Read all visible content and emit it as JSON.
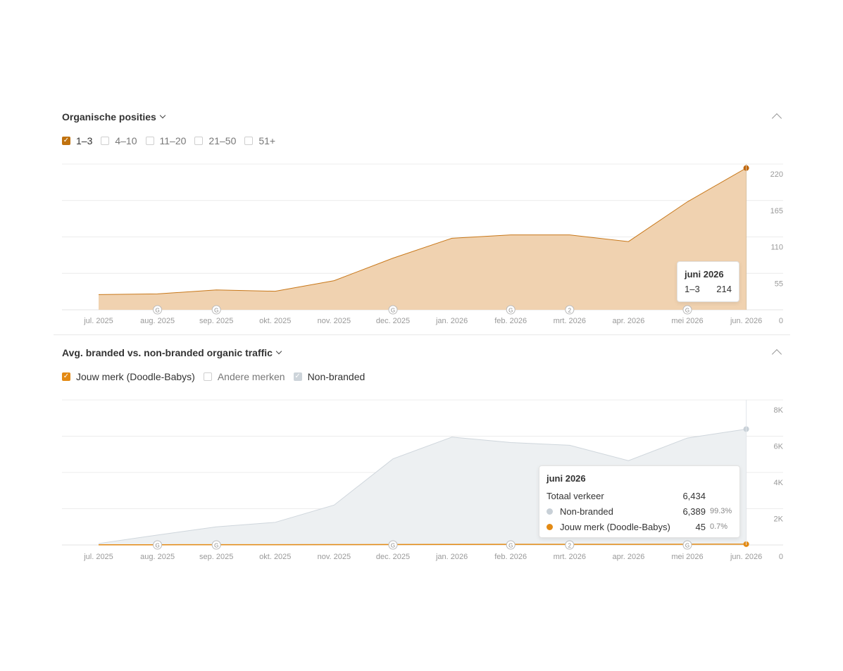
{
  "section1": {
    "title": "Organische posities",
    "filters": [
      {
        "label": "1–3",
        "checked": true
      },
      {
        "label": "4–10",
        "checked": false
      },
      {
        "label": "11–20",
        "checked": false
      },
      {
        "label": "21–50",
        "checked": false
      },
      {
        "label": "51+",
        "checked": false
      }
    ],
    "tooltip": {
      "title": "juni 2026",
      "label": "1–3",
      "value": "214"
    }
  },
  "section2": {
    "title": "Avg. branded vs. non-branded organic traffic",
    "filters": [
      {
        "label": "Jouw merk (Doodle-Babys)",
        "checked": true
      },
      {
        "label": "Andere merken",
        "checked": false
      },
      {
        "label": "Non-branded",
        "checked": true
      }
    ],
    "tooltip": {
      "title": "juni 2026",
      "total_label": "Totaal verkeer",
      "total_value": "6,434",
      "rows": [
        {
          "label": "Non-branded",
          "value": "6,389",
          "pct": "99.3%",
          "color": "#c8d0d7"
        },
        {
          "label": "Jouw merk (Doodle-Babys)",
          "value": "45",
          "pct": "0.7%",
          "color": "#e38a14"
        }
      ]
    }
  },
  "chart_data": [
    {
      "type": "area",
      "title": "Organische posities",
      "x": [
        "jul. 2025",
        "aug. 2025",
        "sep. 2025",
        "okt. 2025",
        "nov. 2025",
        "dec. 2025",
        "jan. 2026",
        "feb. 2026",
        "mrt. 2026",
        "apr. 2026",
        "mei 2026",
        "jun. 2026"
      ],
      "series": [
        {
          "name": "1–3",
          "color": "#e38a14",
          "values": [
            23,
            24,
            30,
            28,
            44,
            78,
            108,
            113,
            113,
            103,
            163,
            214
          ]
        }
      ],
      "yticks": [
        "0",
        "55",
        "110",
        "165",
        "220"
      ],
      "ylim": [
        0,
        220
      ],
      "annotations": [
        {
          "x": "aug. 2025",
          "label": "G"
        },
        {
          "x": "sep. 2025",
          "label": "G"
        },
        {
          "x": "dec. 2025",
          "label": "G"
        },
        {
          "x": "feb. 2026",
          "label": "G"
        },
        {
          "x": "mrt. 2026",
          "label": "2"
        },
        {
          "x": "mei 2026",
          "label": "G"
        }
      ],
      "grid": true
    },
    {
      "type": "area",
      "title": "Avg. branded vs. non-branded organic traffic",
      "x": [
        "jul. 2025",
        "aug. 2025",
        "sep. 2025",
        "okt. 2025",
        "nov. 2025",
        "dec. 2025",
        "jan. 2026",
        "feb. 2026",
        "mrt. 2026",
        "apr. 2026",
        "mei 2026",
        "jun. 2026"
      ],
      "series": [
        {
          "name": "Non-branded",
          "color": "#c8d0d7",
          "values": [
            80,
            550,
            1000,
            1250,
            2200,
            4750,
            5950,
            5650,
            5500,
            4650,
            5900,
            6389
          ]
        },
        {
          "name": "Jouw merk (Doodle-Babys)",
          "color": "#e38a14",
          "values": [
            10,
            12,
            14,
            15,
            18,
            25,
            30,
            32,
            33,
            35,
            40,
            45
          ]
        }
      ],
      "yticks": [
        "0",
        "2K",
        "4K",
        "6K",
        "8K"
      ],
      "ylim": [
        0,
        8000
      ],
      "annotations": [
        {
          "x": "aug. 2025",
          "label": "G"
        },
        {
          "x": "sep. 2025",
          "label": "G"
        },
        {
          "x": "dec. 2025",
          "label": "G"
        },
        {
          "x": "feb. 2026",
          "label": "G"
        },
        {
          "x": "mrt. 2026",
          "label": "2"
        },
        {
          "x": "mei 2026",
          "label": "G"
        }
      ],
      "grid": true
    }
  ]
}
